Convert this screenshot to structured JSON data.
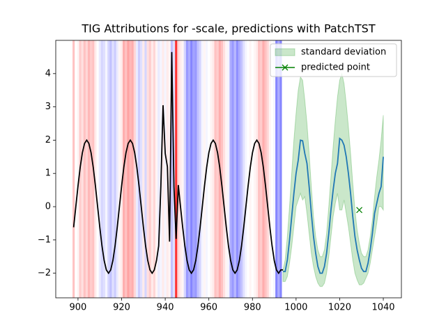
{
  "chart_data": {
    "type": "line",
    "title": "TIG Attributions for -scale, predictions with PatchTST",
    "xlim": [
      889.8,
      1048.3
    ],
    "ylim": [
      -2.74,
      5.0
    ],
    "xticks": [
      900,
      920,
      940,
      960,
      980,
      1000,
      1020,
      1040
    ],
    "yticks": [
      -2,
      -1,
      0,
      1,
      2,
      3,
      4
    ],
    "legend": "upper right",
    "history": {
      "color": "#000000",
      "x": [
        898,
        899,
        900,
        901,
        902,
        903,
        904,
        905,
        906,
        907,
        908,
        909,
        910,
        911,
        912,
        913,
        914,
        915,
        916,
        917,
        918,
        919,
        920,
        921,
        922,
        923,
        924,
        925,
        926,
        927,
        928,
        929,
        930,
        931,
        932,
        933,
        934,
        935,
        936,
        937,
        938,
        939,
        940,
        941,
        942,
        943,
        944,
        945,
        946,
        947,
        948,
        949,
        950,
        951,
        952,
        953,
        954,
        955,
        956,
        957,
        958,
        959,
        960,
        961,
        962,
        963,
        964,
        965,
        966,
        967,
        968,
        969,
        970,
        971,
        972,
        973,
        974,
        975,
        976,
        977,
        978,
        979,
        980,
        981,
        982,
        983,
        984,
        985,
        986,
        987,
        988,
        989,
        990,
        991,
        992,
        993,
        994
      ],
      "values": [
        -0.62,
        0.0,
        0.62,
        1.18,
        1.62,
        1.9,
        2.0,
        1.9,
        1.62,
        1.18,
        0.62,
        0.0,
        -0.62,
        -1.18,
        -1.62,
        -1.9,
        -2.0,
        -1.9,
        -1.62,
        -1.18,
        -0.62,
        0.0,
        0.62,
        1.18,
        1.62,
        1.9,
        2.0,
        1.9,
        1.62,
        1.18,
        0.62,
        0.0,
        -0.62,
        -1.18,
        -1.62,
        -1.9,
        -2.0,
        -1.9,
        -1.62,
        -1.18,
        0.62,
        3.05,
        1.6,
        1.2,
        -1.05,
        4.65,
        0.6,
        -0.97,
        0.65,
        0.0,
        -0.62,
        -1.18,
        -1.62,
        -1.9,
        -2.0,
        -1.9,
        -1.62,
        -1.18,
        -0.62,
        0.0,
        0.62,
        1.18,
        1.62,
        1.9,
        2.0,
        1.9,
        1.62,
        1.18,
        0.62,
        0.0,
        -0.62,
        -1.18,
        -1.62,
        -1.9,
        -2.0,
        -1.9,
        -1.62,
        -1.18,
        -0.62,
        0.0,
        0.62,
        1.18,
        1.62,
        1.9,
        2.0,
        1.9,
        1.62,
        1.18,
        0.62,
        0.0,
        -0.62,
        -1.18,
        -1.62,
        -1.9,
        -2.0,
        -1.9,
        -1.9
      ]
    },
    "attributions": {
      "positive_color": "#ff0000",
      "negative_color": "#0000ff",
      "values": [
        0.3,
        0,
        0.05,
        0.25,
        0.15,
        0.3,
        0.2,
        0.35,
        0.25,
        0.3,
        0.1,
        0,
        -0.1,
        -0.2,
        -0.15,
        -0.05,
        -0.2,
        -0.3,
        -0.15,
        -0.25,
        -0.1,
        0.05,
        0.1,
        0.4,
        0.3,
        0.45,
        0.35,
        0.4,
        0.2,
        -0.1,
        -0.25,
        -0.15,
        0.1,
        -0.2,
        0.15,
        0.25,
        0.1,
        0.2,
        0.05,
        -0.1,
        -0.05,
        0.1,
        -0.05,
        0.1,
        0.05,
        -0.3,
        -0.15,
        1.0,
        0.2,
        0.1,
        0.05,
        -0.2,
        -0.5,
        -0.4,
        -0.6,
        -0.45,
        -0.5,
        -0.3,
        -0.2,
        -0.05,
        0.05,
        -0.05,
        0,
        0.05,
        0.1,
        0.3,
        0.25,
        0.4,
        0.3,
        0.15,
        0.05,
        -0.05,
        -0.4,
        -0.5,
        -0.35,
        -0.55,
        -0.4,
        -0.3,
        -0.15,
        -0.05,
        0,
        0.05,
        0,
        0.05,
        0.1,
        0.3,
        0.25,
        0.4,
        0.3,
        0.2,
        0.05,
        0,
        -0.05,
        -0.6,
        -0.4,
        -0.6,
        0
      ]
    },
    "forecast": {
      "color": "#1f77b4",
      "x": [
        994,
        995,
        996,
        997,
        998,
        999,
        1000,
        1001,
        1002,
        1003,
        1004,
        1005,
        1006,
        1007,
        1008,
        1009,
        1010,
        1011,
        1012,
        1013,
        1014,
        1015,
        1016,
        1017,
        1018,
        1019,
        1020,
        1021,
        1022,
        1023,
        1024,
        1025,
        1026,
        1027,
        1028,
        1029,
        1030,
        1031,
        1032,
        1033,
        1034,
        1035,
        1036,
        1037,
        1038,
        1039,
        1040
      ],
      "values": [
        -1.95,
        -1.95,
        -1.6,
        -1.0,
        -0.3,
        0.4,
        1.0,
        1.4,
        2.0,
        1.98,
        1.6,
        1.3,
        0.6,
        -0.2,
        -0.9,
        -1.4,
        -1.8,
        -2.0,
        -2.0,
        -1.8,
        -1.4,
        -0.8,
        -0.1,
        0.5,
        1.0,
        1.3,
        2.05,
        2.0,
        1.85,
        1.5,
        1.0,
        0.4,
        -0.3,
        -0.9,
        -1.3,
        -1.6,
        -1.85,
        -1.95,
        -1.95,
        -1.7,
        -1.3,
        -0.8,
        -0.2,
        0.1,
        0.4,
        0.6,
        1.5
      ]
    },
    "band": {
      "name": "standard deviation",
      "color": "#2ca02c",
      "upper": [
        -1.9,
        -1.6,
        -0.9,
        0.0,
        1.0,
        2.0,
        2.8,
        3.5,
        3.9,
        3.8,
        3.2,
        2.5,
        1.6,
        0.6,
        -0.3,
        -0.9,
        -1.3,
        -1.5,
        -1.5,
        -1.3,
        -0.8,
        0.0,
        0.9,
        1.8,
        2.6,
        3.3,
        3.8,
        4.0,
        3.7,
        3.1,
        2.4,
        1.6,
        0.7,
        -0.1,
        -0.7,
        -1.1,
        -1.4,
        -1.5,
        -1.5,
        -1.3,
        -0.9,
        -0.4,
        0.3,
        0.9,
        1.4,
        2.0,
        2.75
      ],
      "lower": [
        -2.25,
        -2.25,
        -2.1,
        -1.7,
        -1.2,
        -0.6,
        0.0,
        0.2,
        0.4,
        0.2,
        0.3,
        -0.2,
        -0.8,
        -1.4,
        -1.8,
        -2.1,
        -2.3,
        -2.4,
        -2.4,
        -2.3,
        -2.0,
        -1.5,
        -0.9,
        -0.3,
        0.1,
        0.4,
        -0.1,
        -0.1,
        0.2,
        -0.2,
        -0.6,
        -1.1,
        -1.6,
        -2.0,
        -2.2,
        -2.35,
        -2.35,
        -2.3,
        -2.15,
        -2.0,
        -1.7,
        -1.3,
        -0.9,
        -0.5,
        0.0,
        0.0,
        -0.1
      ]
    },
    "point": {
      "name": "predicted point",
      "color": "#008000",
      "x": 1029,
      "y": -0.1
    }
  }
}
